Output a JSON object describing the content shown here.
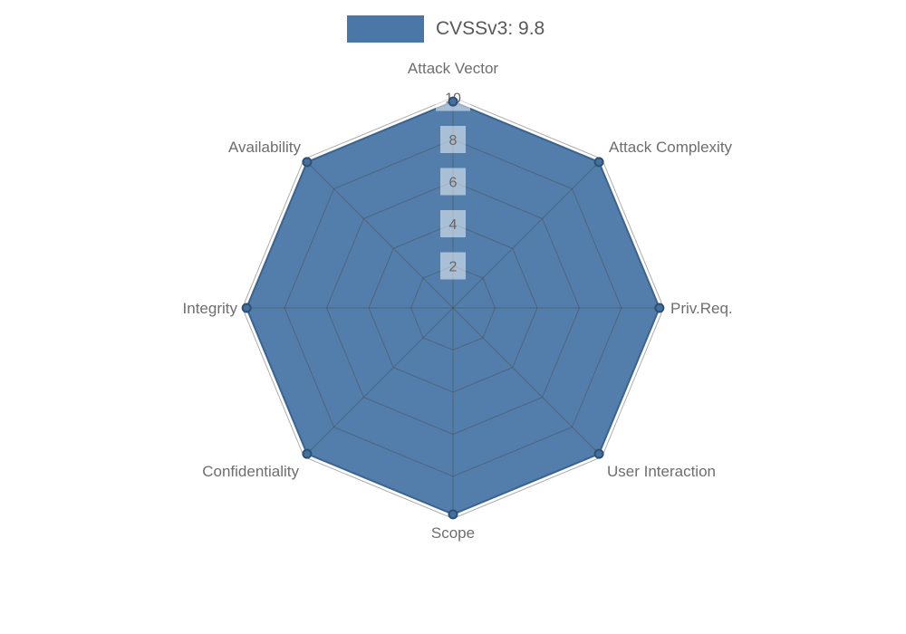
{
  "legend": {
    "label": "CVSSv3: 9.8"
  },
  "chart_data": {
    "type": "radar",
    "title": "CVSSv3: 9.8",
    "axes": [
      "Attack Vector",
      "Attack Complexity",
      "Priv.Req.",
      "User Interaction",
      "Scope",
      "Confidentiality",
      "Integrity",
      "Availability"
    ],
    "series": [
      {
        "name": "CVSSv3: 9.8",
        "values": [
          9.8,
          9.8,
          9.8,
          9.8,
          9.8,
          9.8,
          9.8,
          9.8
        ]
      }
    ],
    "ticks": [
      2,
      4,
      6,
      8,
      10
    ],
    "max": 10,
    "grid": true,
    "legend_position": "top",
    "colors": {
      "series_fill": "#4a77a8",
      "series_border": "#3a648f",
      "point_fill": "#44709c",
      "point_border": "#2d4f76",
      "grid_line": "rgba(70,70,70,0.45)",
      "axis_label": "#6e6e6e",
      "tick_text": "#666666",
      "tick_backdrop": "rgba(255,255,255,0.5)",
      "legend_text": "#58585a"
    }
  }
}
